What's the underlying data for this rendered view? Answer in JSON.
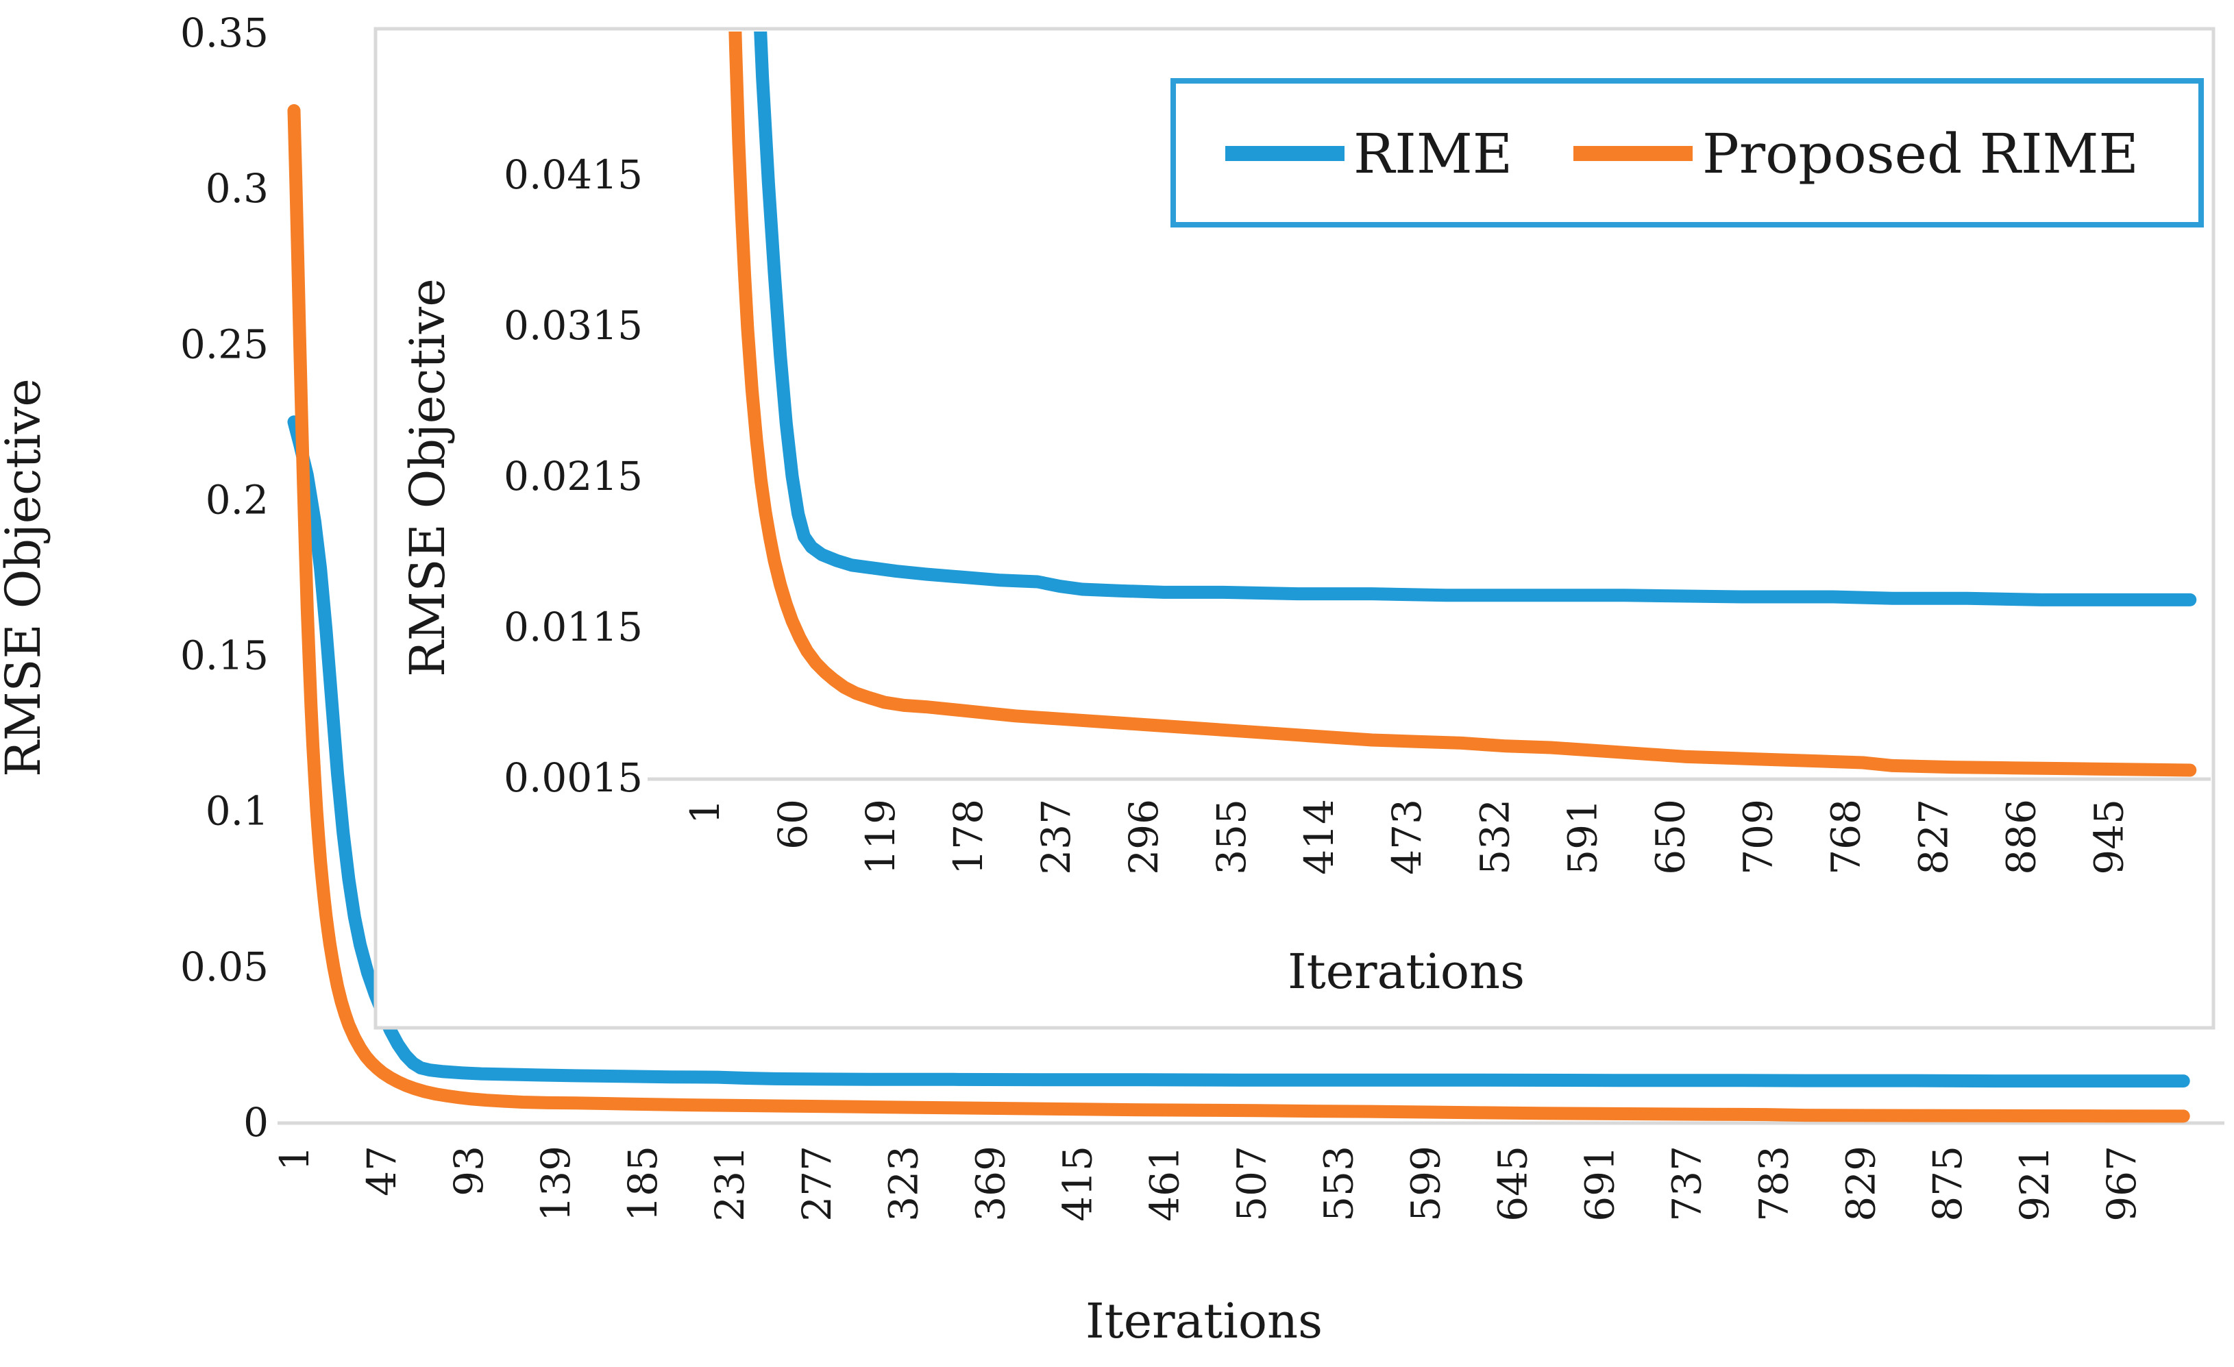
{
  "figure": {
    "background": "#ffffff",
    "axis_color": "#d9d9d9",
    "text_color": "#1a1a1a",
    "legend": {
      "border_color": "#2e9ed8",
      "items": [
        {
          "label": "RIME",
          "color": "#1f9ad6"
        },
        {
          "label": "Proposed RIME",
          "color": "#f57e27"
        }
      ]
    }
  },
  "chart_data": [
    {
      "id": "main",
      "type": "line",
      "title": "",
      "xlabel": "Iterations",
      "ylabel": "RMSE Objective",
      "xlim": [
        1,
        1000
      ],
      "ylim": [
        0,
        0.35
      ],
      "grid": false,
      "legend_position": "top-right",
      "x_tick_labels": [
        "1",
        "47",
        "93",
        "139",
        "185",
        "231",
        "277",
        "323",
        "369",
        "415",
        "461",
        "507",
        "553",
        "599",
        "645",
        "691",
        "737",
        "783",
        "829",
        "875",
        "921",
        "967"
      ],
      "y_tick_labels": [
        "0",
        "0.05",
        "0.1",
        "0.15",
        "0.2",
        "0.25",
        "0.3",
        "0.35"
      ],
      "series": [
        {
          "name": "RIME",
          "color": "#1f9ad6",
          "points": [
            [
              1,
              0.225
            ],
            [
              4,
              0.218
            ],
            [
              8,
              0.208
            ],
            [
              12,
              0.193
            ],
            [
              15,
              0.178
            ],
            [
              18,
              0.158
            ],
            [
              21,
              0.135
            ],
            [
              24,
              0.112
            ],
            [
              27,
              0.093
            ],
            [
              30,
              0.078
            ],
            [
              33,
              0.066
            ],
            [
              36,
              0.057
            ],
            [
              40,
              0.048
            ],
            [
              44,
              0.041
            ],
            [
              48,
              0.035
            ],
            [
              52,
              0.0295
            ],
            [
              56,
              0.025
            ],
            [
              60,
              0.0215
            ],
            [
              64,
              0.019
            ],
            [
              68,
              0.0175
            ],
            [
              73,
              0.0168
            ],
            [
              80,
              0.0163
            ],
            [
              90,
              0.0159
            ],
            [
              100,
              0.0156
            ],
            [
              115,
              0.0154
            ],
            [
              130,
              0.0152
            ],
            [
              150,
              0.015
            ],
            [
              175,
              0.0148
            ],
            [
              200,
              0.0146
            ],
            [
              225,
              0.0145
            ],
            [
              240,
              0.0142
            ],
            [
              255,
              0.014
            ],
            [
              280,
              0.0139
            ],
            [
              310,
              0.0138
            ],
            [
              350,
              0.0138
            ],
            [
              400,
              0.0137
            ],
            [
              450,
              0.0137
            ],
            [
              500,
              0.0136
            ],
            [
              560,
              0.0136
            ],
            [
              620,
              0.0136
            ],
            [
              700,
              0.0135
            ],
            [
              760,
              0.0135
            ],
            [
              800,
              0.0134
            ],
            [
              850,
              0.0134
            ],
            [
              900,
              0.0133
            ],
            [
              950,
              0.0133
            ],
            [
              1000,
              0.0133
            ]
          ]
        },
        {
          "name": "Proposed RIME",
          "color": "#f57e27",
          "points": [
            [
              1,
              0.325
            ],
            [
              2,
              0.302
            ],
            [
              3,
              0.278
            ],
            [
              4,
              0.252
            ],
            [
              5,
              0.228
            ],
            [
              6,
              0.205
            ],
            [
              7,
              0.184
            ],
            [
              8,
              0.165
            ],
            [
              9,
              0.149
            ],
            [
              10,
              0.134
            ],
            [
              11,
              0.121
            ],
            [
              12,
              0.11
            ],
            [
              13,
              0.1
            ],
            [
              14,
              0.0915
            ],
            [
              15,
              0.084
            ],
            [
              16,
              0.0775
            ],
            [
              17,
              0.0715
            ],
            [
              18,
              0.0662
            ],
            [
              19,
              0.0615
            ],
            [
              20,
              0.0572
            ],
            [
              22,
              0.0498
            ],
            [
              24,
              0.0437
            ],
            [
              26,
              0.0388
            ],
            [
              28,
              0.0348
            ],
            [
              30,
              0.0313
            ],
            [
              33,
              0.0272
            ],
            [
              36,
              0.0239
            ],
            [
              39,
              0.0212
            ],
            [
              42,
              0.0191
            ],
            [
              45,
              0.0174
            ],
            [
              48,
              0.0159
            ],
            [
              52,
              0.0143
            ],
            [
              56,
              0.013
            ],
            [
              60,
              0.0119
            ],
            [
              65,
              0.0108
            ],
            [
              70,
              0.0099
            ],
            [
              76,
              0.0091
            ],
            [
              82,
              0.0085
            ],
            [
              88,
              0.008
            ],
            [
              95,
              0.0075
            ],
            [
              103,
              0.0071
            ],
            [
              112,
              0.0068
            ],
            [
              122,
              0.0065
            ],
            [
              135,
              0.0063
            ],
            [
              150,
              0.0062
            ],
            [
              180,
              0.0059
            ],
            [
              210,
              0.0056
            ],
            [
              240,
              0.0054
            ],
            [
              270,
              0.0052
            ],
            [
              300,
              0.005
            ],
            [
              330,
              0.0048
            ],
            [
              360,
              0.0046
            ],
            [
              390,
              0.0044
            ],
            [
              420,
              0.0042
            ],
            [
              450,
              0.004
            ],
            [
              480,
              0.0039
            ],
            [
              510,
              0.0038
            ],
            [
              540,
              0.0036
            ],
            [
              570,
              0.0035
            ],
            [
              600,
              0.0033
            ],
            [
              630,
              0.0031
            ],
            [
              660,
              0.0029
            ],
            [
              690,
              0.0028
            ],
            [
              720,
              0.0027
            ],
            [
              750,
              0.0026
            ],
            [
              780,
              0.0025
            ],
            [
              800,
              0.0023
            ],
            [
              840,
              0.0022
            ],
            [
              880,
              0.00215
            ],
            [
              920,
              0.0021
            ],
            [
              960,
              0.00205
            ],
            [
              1000,
              0.002
            ]
          ]
        }
      ]
    },
    {
      "id": "inset",
      "type": "line",
      "title": "",
      "xlabel": "Iterations",
      "ylabel": "RMSE Objective",
      "xlim": [
        1,
        1000
      ],
      "ylim": [
        0.0015,
        0.0512
      ],
      "grid": false,
      "note": "zoomed view of the same two series",
      "x_tick_labels": [
        "1",
        "60",
        "119",
        "178",
        "237",
        "296",
        "355",
        "414",
        "473",
        "532",
        "591",
        "650",
        "709",
        "768",
        "827",
        "886",
        "945"
      ],
      "y_tick_labels": [
        "0.0015",
        "0.0115",
        "0.0215",
        "0.0315",
        "0.0415"
      ],
      "series_source": "main"
    }
  ]
}
